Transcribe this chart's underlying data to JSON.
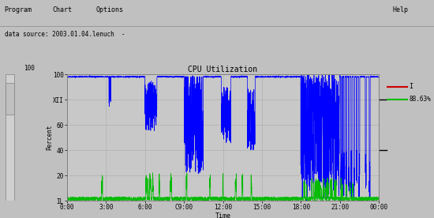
{
  "title": "CPU Utilization",
  "xlabel": "Time",
  "ylabel": "Percent",
  "data_source_label": "data source: 2003.01.04.lenuch  -",
  "menu_left": [
    "Program",
    "Chart",
    "Options"
  ],
  "menu_right": "Help",
  "ylim": [
    0,
    100
  ],
  "ytick_vals": [
    0,
    20,
    40,
    60,
    80,
    100
  ],
  "ytick_labels": [
    "IL",
    "20",
    "40",
    "60",
    "XII",
    "100"
  ],
  "xtick_vals": [
    0,
    3,
    6,
    9,
    12,
    15,
    18,
    21,
    24
  ],
  "xtick_labels": [
    "0:00",
    "3:00",
    "6:00",
    "C9:00",
    "12:00",
    "15:00",
    "18:00",
    "21:00",
    "00:00"
  ],
  "bg_color": "#c0c0c0",
  "plot_bg_color": "#c8c8c8",
  "grid_color": "#b0b0b0",
  "blue_color": "#0000ff",
  "green_color": "#00bb00",
  "red_color": "#cc0000",
  "legend_red_label": "I",
  "legend_green_label": "88.63%",
  "n_points": 2880,
  "seed": 42
}
